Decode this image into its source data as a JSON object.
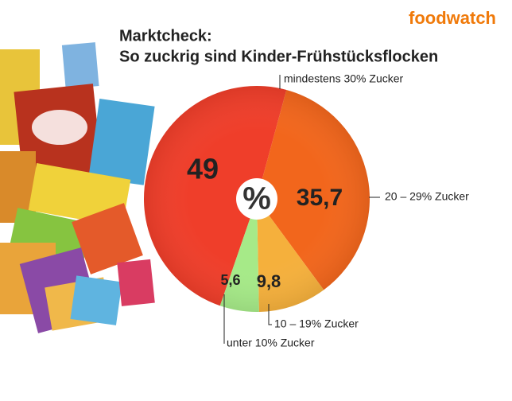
{
  "brand": "foodwatch",
  "chart_data": {
    "type": "pie",
    "title": "Marktcheck:",
    "subtitle": "So zuckrig sind Kinder-Frühstücksflocken",
    "center_label": "%",
    "categories": [
      "mindestens 30% Zucker",
      "20 – 29% Zucker",
      "10 – 19% Zucker",
      "unter 10% Zucker"
    ],
    "values": [
      49,
      35.7,
      9.8,
      5.6
    ],
    "value_labels": [
      "49",
      "35,7",
      "9,8",
      "5,6"
    ],
    "colors": [
      "#ef3e2a",
      "#f2661c",
      "#f5b03c",
      "#a6ea88"
    ]
  }
}
